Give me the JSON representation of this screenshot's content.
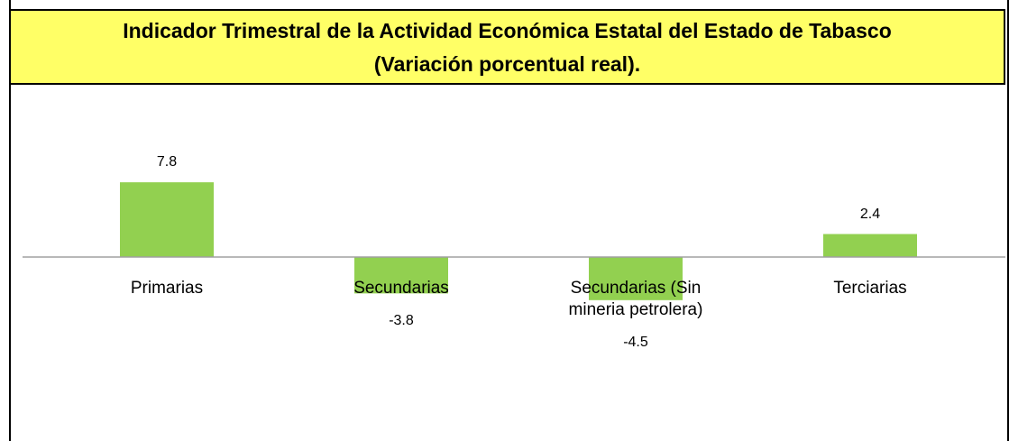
{
  "chart_data": {
    "type": "bar",
    "title": "Indicador Trimestral de la Actividad Económica Estatal del Estado de Tabasco",
    "subtitle": "(Variación porcentual real).",
    "categories": [
      "Primarias",
      "Secundarias",
      "Secundarias (Sin mineria petrolera)",
      "Terciarias"
    ],
    "values": [
      7.8,
      -3.8,
      -4.5,
      2.4
    ],
    "color": "#92d050",
    "ylim": [
      -16,
      16
    ]
  }
}
